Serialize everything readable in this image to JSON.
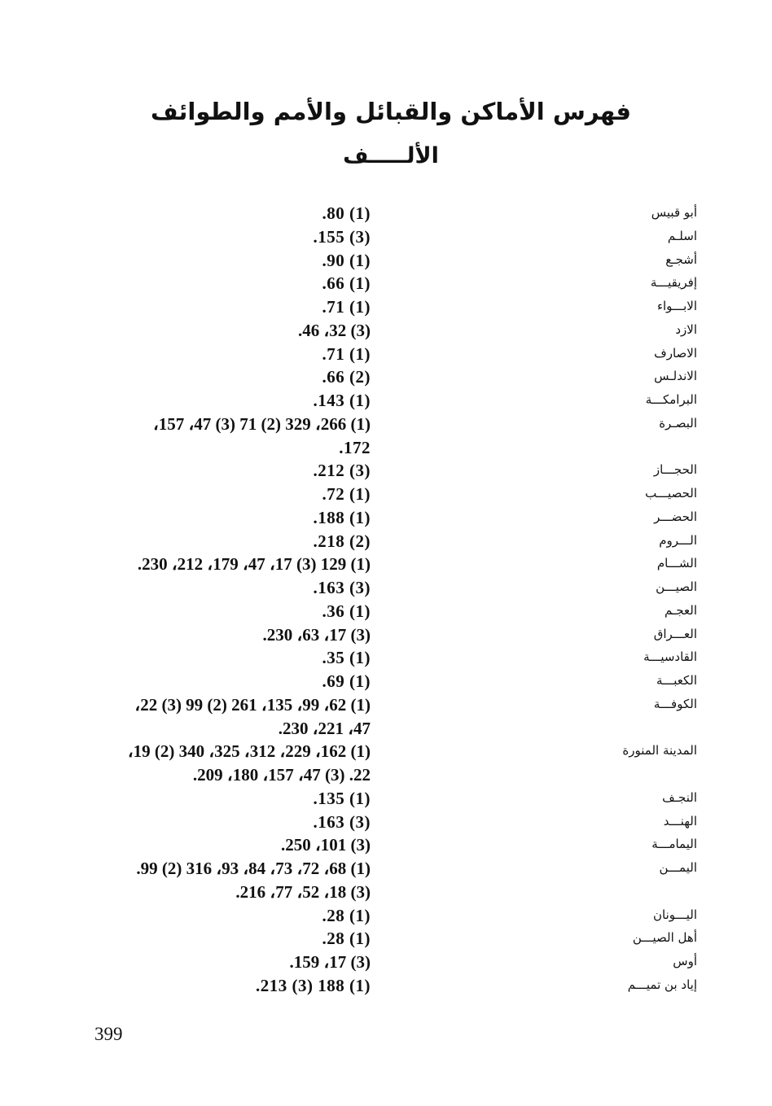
{
  "title": "فهرس الأماكن والقبائل والأمم والطوائف",
  "section": "الألـــــف",
  "page_number": "399",
  "entries": [
    {
      "name": "أبو قبيس",
      "lines": [
        ".80 (1)"
      ]
    },
    {
      "name": "اسلـم",
      "lines": [
        ".155 (3)"
      ]
    },
    {
      "name": "أشجـع",
      "lines": [
        ".90 (1)"
      ]
    },
    {
      "name": "إفريقيـــة",
      "lines": [
        ".66 (1)"
      ]
    },
    {
      "name": "الابـــواء",
      "lines": [
        ".71 (1)"
      ]
    },
    {
      "name": "الازد",
      "lines": [
        ".46 ،32 (3)"
      ]
    },
    {
      "name": "الاصارف",
      "lines": [
        ".71 (1)"
      ]
    },
    {
      "name": "الاندلـس",
      "lines": [
        ".66 (2)"
      ]
    },
    {
      "name": "البرامكـــة",
      "lines": [
        ".143 (1)"
      ]
    },
    {
      "name": "البصـرة",
      "lines": [
        "،157 ،47 (3) 71 (2) 329 ،266 (1)",
        ".172"
      ]
    },
    {
      "name": "الحجـــاز",
      "lines": [
        ".212 (3)"
      ]
    },
    {
      "name": "الحصيـــب",
      "lines": [
        ".72 (1)"
      ]
    },
    {
      "name": "الحضـــر",
      "lines": [
        ".188 (1)"
      ]
    },
    {
      "name": "الـــروم",
      "lines": [
        ".218 (2)"
      ]
    },
    {
      "name": "الشـــام",
      "lines": [
        ".230 ،212 ،179 ،47 ،17 (3) 129 (1)"
      ]
    },
    {
      "name": "الصيـــن",
      "lines": [
        ".163 (3)"
      ]
    },
    {
      "name": "العجـم",
      "lines": [
        ".36 (1)"
      ]
    },
    {
      "name": "العـــراق",
      "lines": [
        ".230 ،63 ،17 (3)"
      ]
    },
    {
      "name": "القادسيـــة",
      "lines": [
        ".35 (1)"
      ]
    },
    {
      "name": "الكعبـــة",
      "lines": [
        ".69 (1)"
      ]
    },
    {
      "name": "الكوفـــة",
      "lines": [
        "،22 (3) 99 (2) 261 ،135 ،99 ،62 (1)",
        ".230 ،221 ،47"
      ]
    },
    {
      "name": "المدينة المنورة",
      "lines": [
        "،19 (2) 340 ،325 ،312 ،229 ،162 (1)",
        ".209 ،180 ،157 ،47 (3) .22"
      ]
    },
    {
      "name": "النجـف",
      "lines": [
        ".135 (1)"
      ]
    },
    {
      "name": "الهنـــد",
      "lines": [
        ".163 (3)"
      ]
    },
    {
      "name": "اليمامـــة",
      "lines": [
        ".250 ،101 (3)"
      ]
    },
    {
      "name": "اليمـــن",
      "lines": [
        ".99 (2) 316 ،93 ،84 ،73 ،72 ،68 (1)",
        ".216 ،77 ،52 ،18 (3)"
      ]
    },
    {
      "name": "اليـــونان",
      "lines": [
        ".28 (1)"
      ]
    },
    {
      "name": "أهل الصيـــن",
      "lines": [
        ".28 (1)"
      ]
    },
    {
      "name": "أوس",
      "lines": [
        ".159 ،17 (3)"
      ]
    },
    {
      "name": "إياد بن تميـــم",
      "lines": [
        ".213 (3) 188 (1)"
      ]
    }
  ]
}
